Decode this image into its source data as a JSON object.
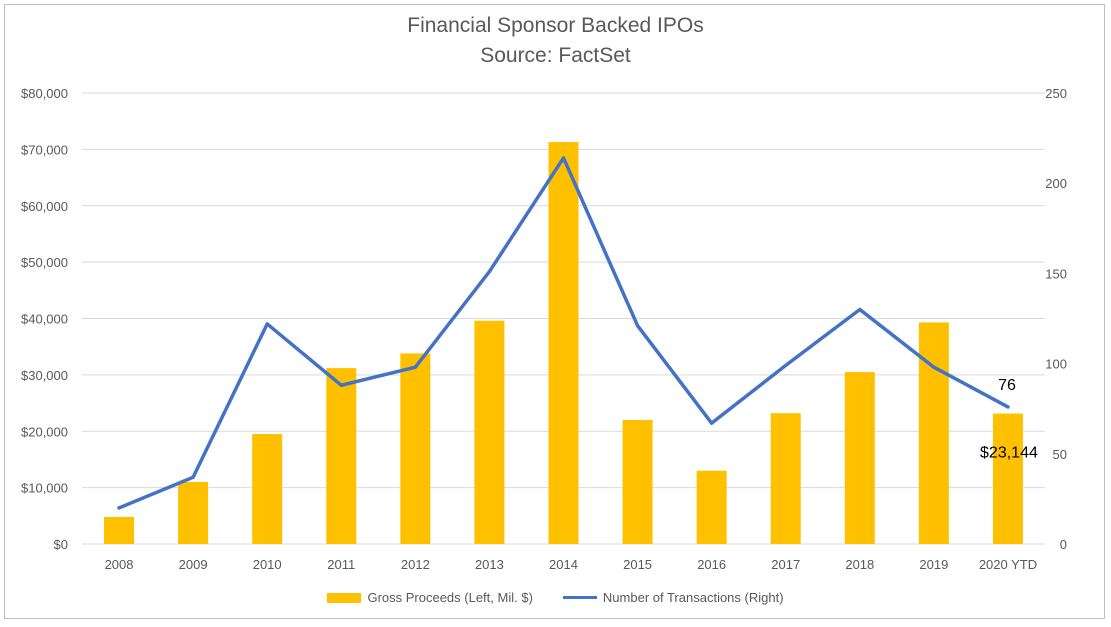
{
  "chart_data": {
    "type": "bar",
    "title": "Financial Sponsor Backed IPOs",
    "subtitle": "Source: FactSet",
    "categories": [
      "2008",
      "2009",
      "2010",
      "2011",
      "2012",
      "2013",
      "2014",
      "2015",
      "2016",
      "2017",
      "2018",
      "2019",
      "2020 YTD"
    ],
    "series": [
      {
        "name": "Gross Proceeds (Left, Mil. $)",
        "type": "bar",
        "axis": "left",
        "values": [
          4800,
          11000,
          19500,
          31200,
          33800,
          39600,
          71300,
          22000,
          13000,
          23200,
          30500,
          39300,
          23144
        ]
      },
      {
        "name": "Number of Transactions (Right)",
        "type": "line",
        "axis": "right",
        "values": [
          20,
          37,
          122,
          88,
          98,
          151,
          214,
          121,
          67,
          99,
          130,
          98,
          76
        ]
      }
    ],
    "ylim_left": [
      0,
      80000
    ],
    "yticks_left": [
      "$0",
      "$10,000",
      "$20,000",
      "$30,000",
      "$40,000",
      "$50,000",
      "$60,000",
      "$70,000",
      "$80,000"
    ],
    "ylim_right": [
      0,
      250
    ],
    "yticks_right": [
      "0",
      "50",
      "100",
      "150",
      "200",
      "250"
    ],
    "data_labels": {
      "bar_last": "$23,144",
      "line_last": "76"
    },
    "grid": true,
    "legend_position": "bottom",
    "colors": {
      "bar": "#FFC000",
      "line": "#4472C4",
      "grid": "#d9d9d9",
      "text": "#595959"
    }
  }
}
